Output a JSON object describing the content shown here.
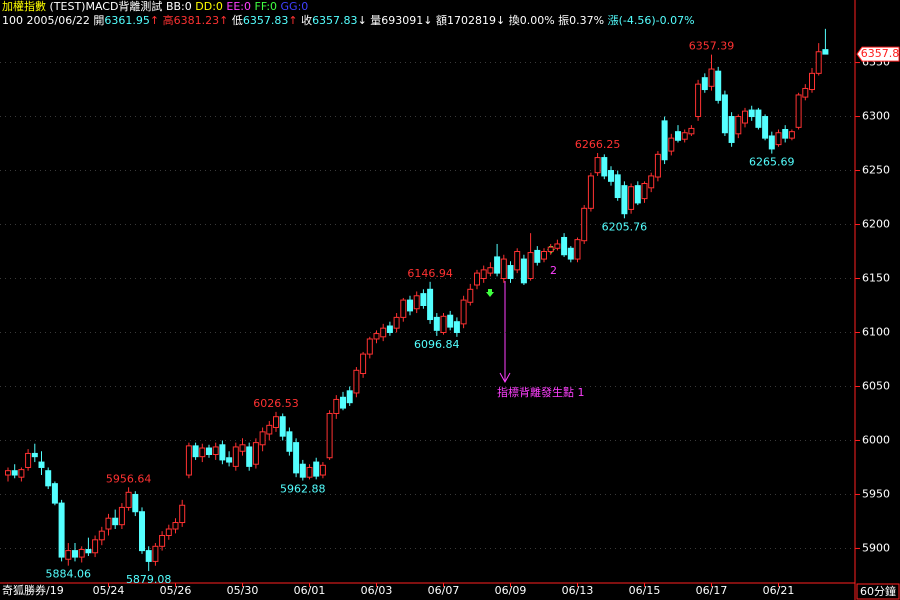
{
  "header": {
    "line1": [
      "加權指數",
      "(TEST)MACD背離測試",
      "BB:0",
      "DD:0",
      "EE:0",
      "FF:0",
      "GG:0"
    ],
    "line2": [
      "100",
      "2005/06/22",
      "開",
      "↑",
      "高",
      "↑",
      "低",
      "↑",
      "收",
      "↓",
      "量693091",
      "↓",
      "額1702819",
      "↓",
      "換0.00%",
      "振0.37%",
      "漲(-4.56)-0.07%"
    ]
  },
  "annotations": {
    "divergence_1": "指標背離發生點 1",
    "divergence_2": "2"
  },
  "footer": {
    "left": "奇狐勝券/19",
    "period": "60分鐘"
  },
  "chart_data": {
    "type": "candlestick",
    "up_color": "#ff3232",
    "down_color": "#54ffff",
    "axis_color": "#ff2020",
    "grid": true,
    "ylim": [
      5868,
      6382
    ],
    "yticks": [
      5900,
      5950,
      6000,
      6050,
      6100,
      6150,
      6200,
      6250,
      6300,
      6350
    ],
    "categories": [
      null,
      null,
      null,
      null,
      null,
      null,
      null,
      null,
      null,
      null,
      null,
      null,
      null,
      null,
      null,
      "05/24",
      null,
      null,
      null,
      null,
      null,
      null,
      null,
      null,
      null,
      "05/26",
      null,
      null,
      null,
      null,
      null,
      null,
      null,
      null,
      null,
      "05/30",
      null,
      null,
      null,
      null,
      null,
      null,
      null,
      null,
      null,
      "06/01",
      null,
      null,
      null,
      null,
      null,
      null,
      null,
      null,
      null,
      "06/03",
      null,
      null,
      null,
      null,
      null,
      null,
      null,
      null,
      null,
      "06/07",
      null,
      null,
      null,
      null,
      null,
      null,
      null,
      null,
      null,
      "06/09",
      null,
      null,
      null,
      null,
      null,
      null,
      null,
      null,
      null,
      "06/13",
      null,
      null,
      null,
      null,
      null,
      null,
      null,
      null,
      null,
      "06/15",
      null,
      null,
      null,
      null,
      null,
      null,
      null,
      null,
      null,
      "06/17",
      null,
      null,
      null,
      null,
      null,
      null,
      null,
      null,
      null,
      "06/21",
      null,
      null,
      null,
      null,
      null,
      null,
      null
    ],
    "candles": [
      [
        5968,
        5975,
        5962,
        5972
      ],
      [
        5972,
        5978,
        5965,
        5968
      ],
      [
        5966,
        5975,
        5962,
        5973
      ],
      [
        5975,
        5992,
        5972,
        5988
      ],
      [
        5988,
        5997,
        5980,
        5985
      ],
      [
        5980,
        5990,
        5968,
        5975
      ],
      [
        5972,
        5975,
        5955,
        5958
      ],
      [
        5960,
        5962,
        5940,
        5942
      ],
      [
        5942,
        5945,
        5888,
        5892
      ],
      [
        5890,
        5905,
        5884.06,
        5898
      ],
      [
        5898,
        5905,
        5888,
        5892
      ],
      [
        5892,
        5902,
        5887,
        5899
      ],
      [
        5899,
        5910,
        5893,
        5896
      ],
      [
        5896,
        5912,
        5892,
        5908
      ],
      [
        5908,
        5920,
        5903,
        5916
      ],
      [
        5918,
        5932,
        5912,
        5928
      ],
      [
        5928,
        5936,
        5918,
        5922
      ],
      [
        5922,
        5942,
        5918,
        5938
      ],
      [
        5938,
        5956.64,
        5935,
        5952
      ],
      [
        5950,
        5953,
        5930,
        5934
      ],
      [
        5934,
        5938,
        5895,
        5898
      ],
      [
        5898,
        5902,
        5879.08,
        5888
      ],
      [
        5888,
        5905,
        5884,
        5902
      ],
      [
        5902,
        5916,
        5898,
        5912
      ],
      [
        5912,
        5922,
        5908,
        5918
      ],
      [
        5918,
        5928,
        5914,
        5924
      ],
      [
        5924,
        5945,
        5920,
        5940
      ],
      [
        5968,
        5998,
        5965,
        5995
      ],
      [
        5995,
        5998,
        5982,
        5985
      ],
      [
        5985,
        5997,
        5980,
        5993
      ],
      [
        5993,
        5996,
        5984,
        5987
      ],
      [
        5987,
        5998,
        5982,
        5994
      ],
      [
        5996,
        6000,
        5978,
        5982
      ],
      [
        5984,
        5990,
        5976,
        5980
      ],
      [
        5976,
        5998,
        5972,
        5994
      ],
      [
        5990,
        6002,
        5986,
        5996
      ],
      [
        5994,
        5998,
        5972,
        5976
      ],
      [
        5978,
        6002,
        5974,
        5998
      ],
      [
        5996,
        6012,
        5990,
        6008
      ],
      [
        6006,
        6018,
        6000,
        6014
      ],
      [
        6012,
        6026.53,
        6008,
        6022
      ],
      [
        6022,
        6025,
        6000,
        6004
      ],
      [
        6008,
        6012,
        5986,
        5990
      ],
      [
        5998,
        6002,
        5966,
        5970
      ],
      [
        5978,
        5982,
        5962.88,
        5966
      ],
      [
        5966,
        5978,
        5964,
        5975
      ],
      [
        5980,
        5984,
        5964,
        5967
      ],
      [
        5968,
        5980,
        5965,
        5977
      ],
      [
        5984,
        6028,
        5982,
        6025
      ],
      [
        6025,
        6042,
        6020,
        6038
      ],
      [
        6040,
        6045,
        6028,
        6030
      ],
      [
        6046,
        6050,
        6032,
        6035
      ],
      [
        6044,
        6068,
        6040,
        6065
      ],
      [
        6062,
        6082,
        6058,
        6080
      ],
      [
        6080,
        6096,
        6076,
        6094
      ],
      [
        6094,
        6102,
        6090,
        6099
      ],
      [
        6096,
        6108,
        6092,
        6104
      ],
      [
        6106,
        6110,
        6097,
        6100
      ],
      [
        6104,
        6118,
        6100,
        6114
      ],
      [
        6114,
        6132,
        6110,
        6130
      ],
      [
        6130,
        6134,
        6116,
        6120
      ],
      [
        6122,
        6138,
        6118,
        6134
      ],
      [
        6136,
        6140,
        6122,
        6125
      ],
      [
        6140,
        6146.94,
        6108,
        6112
      ],
      [
        6114,
        6118,
        6096.84,
        6102
      ],
      [
        6100,
        6118,
        6098,
        6115
      ],
      [
        6116,
        6120,
        6102,
        6105
      ],
      [
        6110,
        6114,
        6096,
        6100
      ],
      [
        6108,
        6134,
        6104,
        6130
      ],
      [
        6128,
        6145,
        6125,
        6140
      ],
      [
        6144,
        6158,
        6140,
        6155
      ],
      [
        6150,
        6162,
        6146,
        6158
      ],
      [
        6155,
        6165,
        6152,
        6160
      ],
      [
        6170,
        6182,
        6152,
        6155
      ],
      [
        6150,
        6172,
        6146,
        6168
      ],
      [
        6162,
        6166,
        6146,
        6150
      ],
      [
        6158,
        6178,
        6155,
        6175
      ],
      [
        6168,
        6172,
        6144,
        6146
      ],
      [
        6150,
        6192,
        6148,
        6174
      ],
      [
        6176,
        6180,
        6162,
        6165
      ],
      [
        6168,
        6178,
        6165,
        6175
      ],
      [
        6175,
        6182,
        6172,
        6179
      ],
      [
        6178,
        6186,
        6176,
        6182
      ],
      [
        6188,
        6192,
        6170,
        6172
      ],
      [
        6178,
        6180,
        6165,
        6168
      ],
      [
        6168,
        6188,
        6165,
        6186
      ],
      [
        6185,
        6218,
        6182,
        6215
      ],
      [
        6215,
        6248,
        6212,
        6245
      ],
      [
        6248,
        6266.25,
        6245,
        6262
      ],
      [
        6262,
        6265,
        6242,
        6245
      ],
      [
        6250,
        6254,
        6236,
        6240
      ],
      [
        6246,
        6250,
        6222,
        6225
      ],
      [
        6236,
        6240,
        6205.76,
        6210
      ],
      [
        6214,
        6238,
        6210,
        6235
      ],
      [
        6236,
        6240,
        6218,
        6220
      ],
      [
        6224,
        6240,
        6220,
        6238
      ],
      [
        6234,
        6248,
        6230,
        6245
      ],
      [
        6244,
        6268,
        6240,
        6265
      ],
      [
        6296,
        6300,
        6256,
        6260
      ],
      [
        6268,
        6284,
        6264,
        6280
      ],
      [
        6286,
        6292,
        6276,
        6278
      ],
      [
        6279,
        6288,
        6276,
        6285
      ],
      [
        6284,
        6292,
        6282,
        6289
      ],
      [
        6300,
        6334,
        6296,
        6330
      ],
      [
        6336,
        6340,
        6322,
        6325
      ],
      [
        6328,
        6357.39,
        6324,
        6344
      ],
      [
        6342,
        6346,
        6312,
        6315
      ],
      [
        6320,
        6324,
        6282,
        6285
      ],
      [
        6300,
        6304,
        6272,
        6276
      ],
      [
        6284,
        6302,
        6280,
        6300
      ],
      [
        6294,
        6308,
        6290,
        6305
      ],
      [
        6306,
        6310,
        6296,
        6300
      ],
      [
        6306,
        6308,
        6288,
        6290
      ],
      [
        6300,
        6302,
        6278,
        6280
      ],
      [
        6282,
        6286,
        6265.69,
        6270
      ],
      [
        6274,
        6288,
        6272,
        6285
      ],
      [
        6288,
        6292,
        6276,
        6280
      ],
      [
        6280,
        6288,
        6278,
        6286
      ],
      [
        6290,
        6322,
        6288,
        6320
      ],
      [
        6318,
        6330,
        6315,
        6326
      ],
      [
        6325,
        6345,
        6322,
        6340
      ],
      [
        6340,
        6368,
        6338,
        6360
      ],
      [
        6361.95,
        6381.23,
        6357.83,
        6357.83
      ]
    ],
    "labeled_highs": [
      18,
      40,
      63,
      88,
      105
    ],
    "labeled_lows": [
      9,
      21,
      44,
      64,
      92,
      114
    ],
    "last_price_label": {
      "value": 6357.83,
      "label": "6357.8"
    }
  }
}
